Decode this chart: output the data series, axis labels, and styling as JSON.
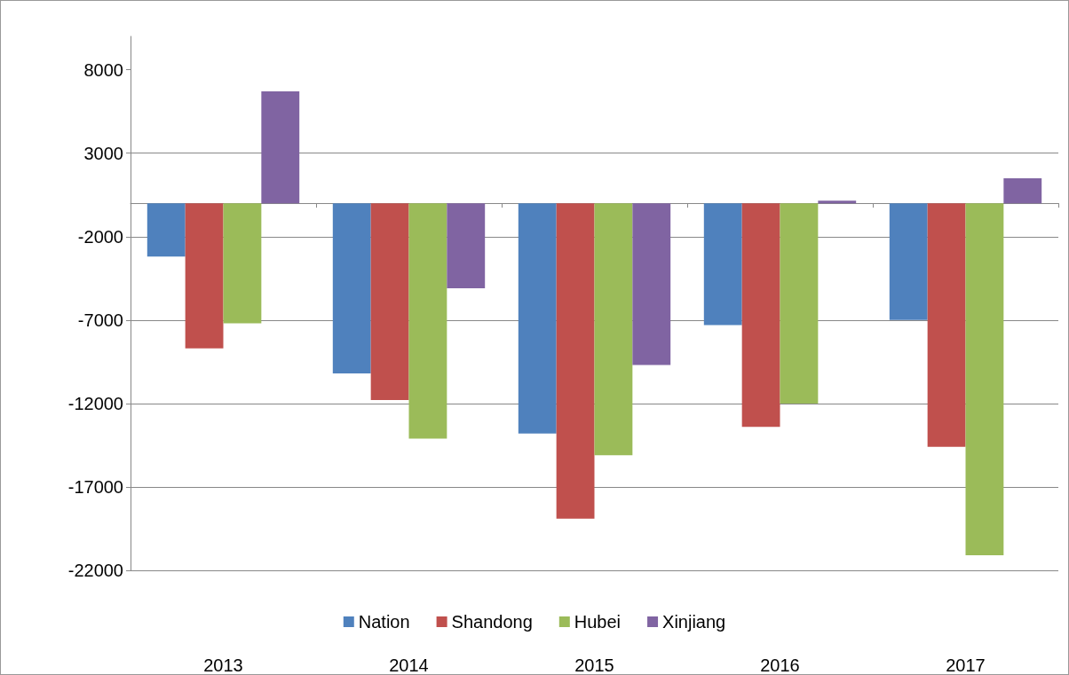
{
  "chart_data": {
    "type": "bar",
    "categories": [
      "2013",
      "2014",
      "2015",
      "2016",
      "2017"
    ],
    "series": [
      {
        "name": "Nation",
        "color": "#4f81bd",
        "values": [
          -3200,
          -10200,
          -13800,
          -7300,
          -7000
        ]
      },
      {
        "name": "Shandong",
        "color": "#c0504d",
        "values": [
          -8700,
          -11800,
          -18900,
          -13400,
          -14600
        ]
      },
      {
        "name": "Hubei",
        "color": "#9bbb59",
        "values": [
          -7200,
          -14100,
          -15100,
          -12000,
          -21100
        ]
      },
      {
        "name": "Xinjiang",
        "color": "#8064a2",
        "values": [
          6700,
          -5100,
          -9700,
          150,
          1500
        ]
      }
    ],
    "ylim": [
      -22000,
      10000
    ],
    "yticks": [
      -22000,
      -17000,
      -12000,
      -7000,
      -2000,
      3000,
      8000
    ],
    "grid": "y",
    "legend": "bottom"
  }
}
